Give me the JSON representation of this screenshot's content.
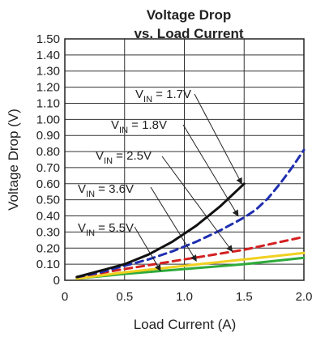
{
  "chart_data": {
    "type": "line",
    "title": "Voltage Drop",
    "subtitle": "vs. Load Current",
    "xlabel": "Load Current (A)",
    "ylabel": "Voltage Drop (V)",
    "xlim": [
      0,
      2.0
    ],
    "ylim": [
      0,
      1.5
    ],
    "grid": true,
    "x_ticks": [
      0,
      0.5,
      1.0,
      1.5,
      2.0
    ],
    "x_tick_labels": [
      "0",
      "0.5",
      "1.0",
      "1.5",
      "2.0"
    ],
    "y_ticks": [
      0,
      0.1,
      0.2,
      0.3,
      0.4,
      0.5,
      0.6,
      0.7,
      0.8,
      0.9,
      1.0,
      1.1,
      1.2,
      1.3,
      1.4,
      1.5
    ],
    "y_tick_labels": [
      "0",
      "0.10",
      "0.20",
      "0.30",
      "0.40",
      "0.50",
      "0.60",
      "0.70",
      "0.80",
      "0.90",
      "1.00",
      "1.10",
      "1.20",
      "1.30",
      "1.40",
      "1.50"
    ],
    "series": [
      {
        "name": "VIN = 1.7V",
        "color": "#111111",
        "dash": false,
        "x": [
          0.1,
          0.3,
          0.5,
          0.7,
          0.9,
          1.1,
          1.3,
          1.5
        ],
        "y": [
          0.02,
          0.06,
          0.1,
          0.16,
          0.24,
          0.34,
          0.46,
          0.6
        ]
      },
      {
        "name": "VIN = 1.8V",
        "color": "#1f2fb0",
        "dash": true,
        "x": [
          0.1,
          0.3,
          0.5,
          0.7,
          0.9,
          1.1,
          1.3,
          1.5,
          1.6,
          1.7,
          1.8,
          1.9,
          2.0
        ],
        "y": [
          0.02,
          0.05,
          0.09,
          0.13,
          0.18,
          0.24,
          0.31,
          0.39,
          0.44,
          0.51,
          0.6,
          0.7,
          0.81
        ]
      },
      {
        "name": "VIN = 2.5V",
        "color": "#d32020",
        "dash": true,
        "x": [
          0.1,
          0.5,
          1.0,
          1.5,
          2.0
        ],
        "y": [
          0.02,
          0.07,
          0.13,
          0.19,
          0.27
        ]
      },
      {
        "name": "VIN = 3.6V",
        "color": "#f0d020",
        "dash": false,
        "x": [
          0.1,
          0.5,
          1.0,
          1.5,
          2.0
        ],
        "y": [
          0.01,
          0.05,
          0.09,
          0.13,
          0.17
        ]
      },
      {
        "name": "VIN = 5.5V",
        "color": "#2eaa3a",
        "dash": false,
        "x": [
          0.1,
          0.5,
          1.0,
          1.5,
          2.0
        ],
        "y": [
          0.01,
          0.04,
          0.07,
          0.1,
          0.14
        ]
      }
    ],
    "annotations": [
      {
        "series": 0,
        "label_main": "V",
        "label_sub": "IN",
        "label_rest": " = 1.7V",
        "target": [
          1.48,
          0.6
        ]
      },
      {
        "series": 1,
        "label_main": "V",
        "label_sub": "IN",
        "label_rest": " = 1.8V",
        "target": [
          1.45,
          0.4
        ]
      },
      {
        "series": 2,
        "label_main": "V",
        "label_sub": "IN",
        "label_rest": " = 2.5V",
        "target": [
          1.4,
          0.18
        ]
      },
      {
        "series": 3,
        "label_main": "V",
        "label_sub": "IN",
        "label_rest": " = 3.6V",
        "target": [
          1.1,
          0.12
        ]
      },
      {
        "series": 4,
        "label_main": "V",
        "label_sub": "IN",
        "label_rest": " = 5.5V",
        "target": [
          0.8,
          0.06
        ]
      }
    ]
  }
}
